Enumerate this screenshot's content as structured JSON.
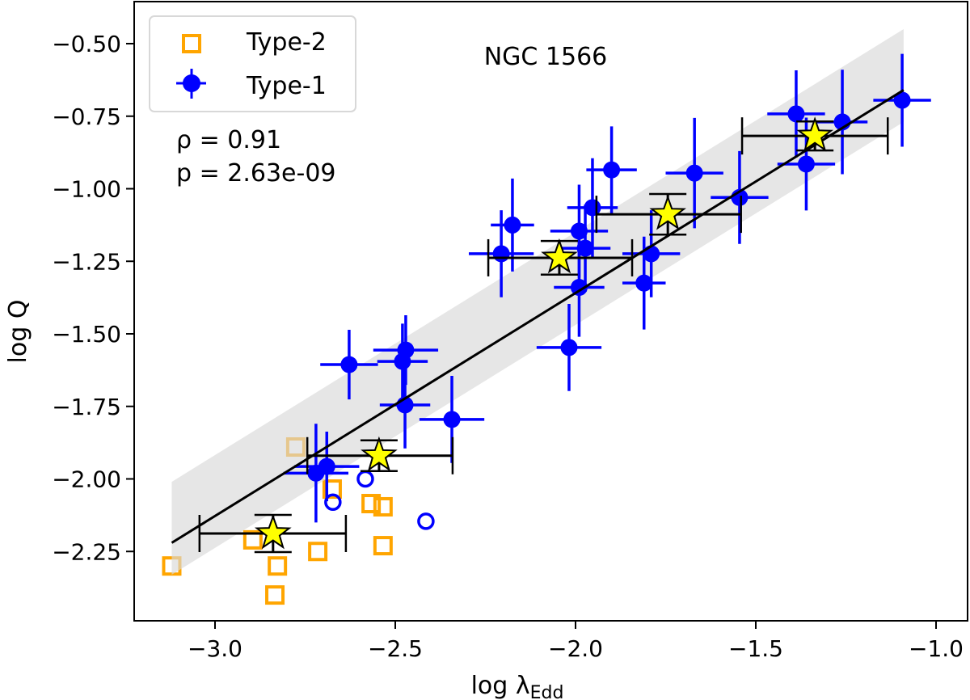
{
  "chart_data": {
    "type": "scatter",
    "title": "NGC 1566",
    "xlabel": "log λ",
    "xlabel_sub": "Edd",
    "ylabel": "log Q",
    "xlim": [
      -3.23,
      -0.91
    ],
    "ylim": [
      -2.49,
      -0.36
    ],
    "xticks": [
      -3.0,
      -2.5,
      -2.0,
      -1.5,
      -1.0
    ],
    "xtick_labels": [
      "−3.0",
      "−2.5",
      "−2.0",
      "−1.5",
      "−1.0"
    ],
    "yticks": [
      -0.5,
      -0.75,
      -1.0,
      -1.25,
      -1.5,
      -1.75,
      -2.0,
      -2.25
    ],
    "ytick_labels": [
      "−0.50",
      "−0.75",
      "−1.00",
      "−1.25",
      "−1.50",
      "−1.75",
      "−2.00",
      "−2.25"
    ],
    "grid": false,
    "legend": {
      "placement": "top-left",
      "entries": [
        "Type-2",
        "Type-1"
      ]
    },
    "annotations": {
      "rho": "ρ = 0.91",
      "p": "p = 2.63e-09"
    },
    "colors": {
      "type1": "#0000ff",
      "type2": "#ffa500",
      "star": "#ffff00",
      "band": "#e5e5e5",
      "fit": "#000000"
    },
    "fit_line": {
      "x": [
        -3.12,
        -1.09
      ],
      "y": [
        -2.22,
        -0.66
      ]
    },
    "band": {
      "x": [
        -3.12,
        -1.09
      ],
      "upper": [
        -2.01,
        -0.45
      ],
      "lower": [
        -2.33,
        -0.77
      ]
    },
    "series": [
      {
        "name": "Type-2",
        "marker": "open-square",
        "points": [
          [
            -3.12,
            -2.3
          ],
          [
            -2.895,
            -2.21
          ],
          [
            -2.827,
            -2.3
          ],
          [
            -2.834,
            -2.4
          ],
          [
            -2.715,
            -2.25
          ],
          [
            -2.675,
            -2.035
          ],
          [
            -2.567,
            -2.085
          ],
          [
            -2.534,
            -2.096
          ],
          [
            -2.534,
            -2.23
          ],
          [
            -2.776,
            -1.89
          ]
        ]
      },
      {
        "name": "Type-1",
        "marker": "filled-circle",
        "points": [
          {
            "x": -1.094,
            "y": -0.695,
            "xerr": 0.08,
            "yerr": 0.16
          },
          {
            "x": -1.388,
            "y": -0.742,
            "xerr": 0.08,
            "yerr": 0.15
          },
          {
            "x": -1.26,
            "y": -0.77,
            "xerr": 0.07,
            "yerr": 0.18
          },
          {
            "x": -1.36,
            "y": -0.915,
            "xerr": 0.08,
            "yerr": 0.16
          },
          {
            "x": -1.67,
            "y": -0.946,
            "xerr": 0.08,
            "yerr": 0.19
          },
          {
            "x": -1.545,
            "y": -1.03,
            "xerr": 0.08,
            "yerr": 0.16
          },
          {
            "x": -1.9,
            "y": -0.935,
            "xerr": 0.07,
            "yerr": 0.15
          },
          {
            "x": -2.175,
            "y": -1.125,
            "xerr": 0.06,
            "yerr": 0.16
          },
          {
            "x": -1.953,
            "y": -1.065,
            "xerr": 0.07,
            "yerr": 0.17
          },
          {
            "x": -1.99,
            "y": -1.146,
            "xerr": 0.08,
            "yerr": 0.16
          },
          {
            "x": -1.973,
            "y": -1.205,
            "xerr": 0.07,
            "yerr": 0.15
          },
          {
            "x": -2.206,
            "y": -1.224,
            "xerr": 0.09,
            "yerr": 0.15
          },
          {
            "x": -1.79,
            "y": -1.224,
            "xerr": 0.08,
            "yerr": 0.15
          },
          {
            "x": -1.81,
            "y": -1.325,
            "xerr": 0.06,
            "yerr": 0.16
          },
          {
            "x": -1.99,
            "y": -1.34,
            "xerr": 0.07,
            "yerr": 0.17
          },
          {
            "x": -2.018,
            "y": -1.547,
            "xerr": 0.09,
            "yerr": 0.15
          },
          {
            "x": -2.628,
            "y": -1.606,
            "xerr": 0.08,
            "yerr": 0.12
          },
          {
            "x": -2.471,
            "y": -1.556,
            "xerr": 0.09,
            "yerr": 0.12
          },
          {
            "x": -2.48,
            "y": -1.595,
            "xerr": 0.07,
            "yerr": 0.13
          },
          {
            "x": -2.473,
            "y": -1.745,
            "xerr": 0.07,
            "yerr": 0.15
          },
          {
            "x": -2.343,
            "y": -1.795,
            "xerr": 0.09,
            "yerr": 0.15
          },
          {
            "x": -2.69,
            "y": -1.957,
            "xerr": 0.09,
            "yerr": 0.12
          },
          {
            "x": -2.72,
            "y": -1.98,
            "xerr": 0.09,
            "yerr": 0.17
          }
        ]
      },
      {
        "marker": "open-circle",
        "points": [
          [
            -2.673,
            -2.08
          ],
          [
            -2.583,
            -2.0
          ],
          [
            -2.415,
            -2.146
          ]
        ]
      },
      {
        "marker": "star",
        "points": [
          {
            "x": -2.839,
            "y": -2.188,
            "xlo": -3.043,
            "xhi": -2.637,
            "yerr": 0.064
          },
          {
            "x": -2.545,
            "y": -1.92,
            "xlo": -2.744,
            "xhi": -2.341,
            "yerr": 0.053
          },
          {
            "x": -2.045,
            "y": -1.238,
            "xlo": -2.242,
            "xhi": -1.843,
            "yerr": 0.058
          },
          {
            "x": -1.744,
            "y": -1.088,
            "xlo": -1.942,
            "xhi": -1.541,
            "yerr": 0.07
          },
          {
            "x": -1.336,
            "y": -0.818,
            "xlo": -1.538,
            "xhi": -1.134,
            "yerr": 0.05
          }
        ]
      }
    ]
  }
}
